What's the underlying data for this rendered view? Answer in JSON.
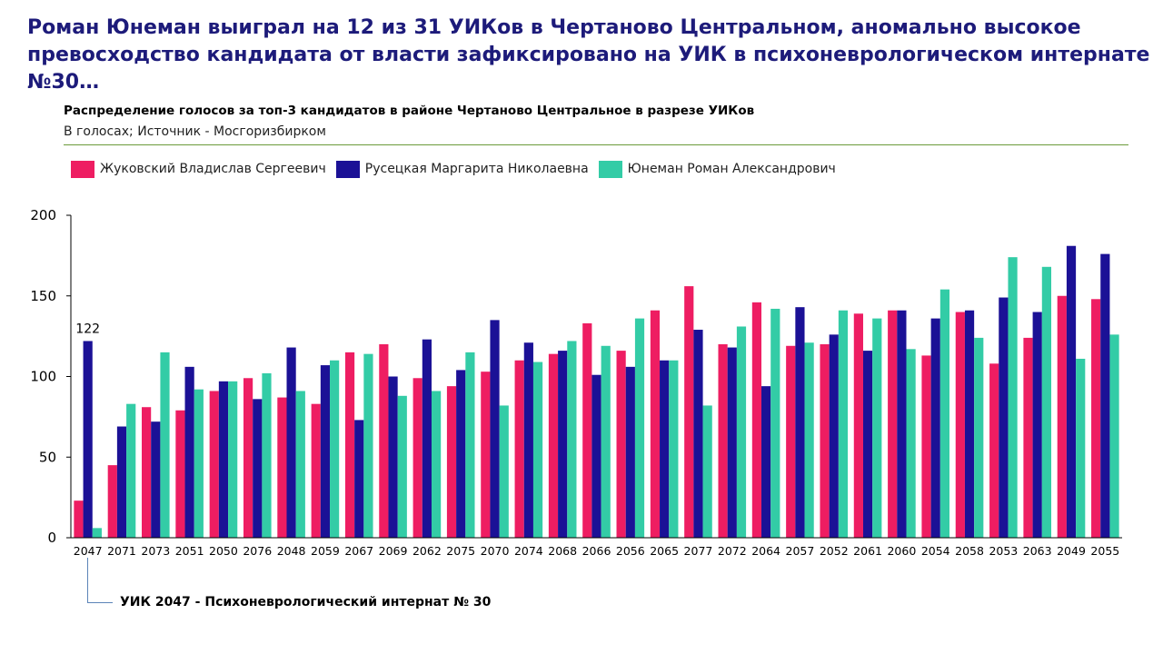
{
  "headline": "Роман Юнеман выиграл на 12 из 31 УИКов в Чертаново Центральном, аномально высокое превосходство кандидата от власти зафиксировано на УИК в психоневрологическом интернате №30…",
  "annotation": "УИК 2047 - Психоневрологический интернат № 30",
  "chart_data": {
    "type": "bar",
    "title": "Распределение голосов за топ-3 кандидатов в районе Чертаново Центральное в разрезе УИКов",
    "subtitle": "В голосах; Источник - Мосгоризбирком",
    "xlabel": "",
    "ylabel": "",
    "ylim": [
      0,
      200
    ],
    "yticks": [
      0,
      50,
      100,
      150,
      200
    ],
    "grid": false,
    "legend_position": "top-left",
    "categories": [
      "2047",
      "2071",
      "2073",
      "2051",
      "2050",
      "2076",
      "2048",
      "2059",
      "2067",
      "2069",
      "2062",
      "2075",
      "2070",
      "2074",
      "2068",
      "2066",
      "2056",
      "2065",
      "2077",
      "2072",
      "2064",
      "2057",
      "2052",
      "2061",
      "2060",
      "2054",
      "2058",
      "2053",
      "2063",
      "2049",
      "2055"
    ],
    "series": [
      {
        "name": "Жуковский Владислав Сергеевич",
        "color": "#ee1d62",
        "values": [
          23,
          45,
          81,
          79,
          91,
          99,
          87,
          83,
          115,
          120,
          99,
          94,
          103,
          110,
          114,
          133,
          116,
          141,
          156,
          120,
          146,
          119,
          120,
          139,
          141,
          113,
          140,
          108,
          124,
          150,
          148
        ]
      },
      {
        "name": "Русецкая Маргарита Николаевна",
        "color": "#1b1196",
        "values": [
          122,
          69,
          72,
          106,
          97,
          86,
          118,
          107,
          73,
          100,
          123,
          104,
          135,
          121,
          116,
          101,
          106,
          110,
          129,
          118,
          94,
          143,
          126,
          116,
          141,
          136,
          141,
          149,
          140,
          181,
          176
        ]
      },
      {
        "name": "Юнеман Роман Александрович",
        "color": "#33cca6",
        "values": [
          6,
          83,
          115,
          92,
          97,
          102,
          91,
          110,
          114,
          88,
          91,
          115,
          82,
          109,
          122,
          119,
          136,
          110,
          82,
          131,
          142,
          121,
          141,
          136,
          117,
          154,
          124,
          174,
          168,
          111,
          126
        ]
      }
    ],
    "data_labels": [
      {
        "series": 1,
        "category": "2047",
        "text": "122"
      }
    ]
  }
}
